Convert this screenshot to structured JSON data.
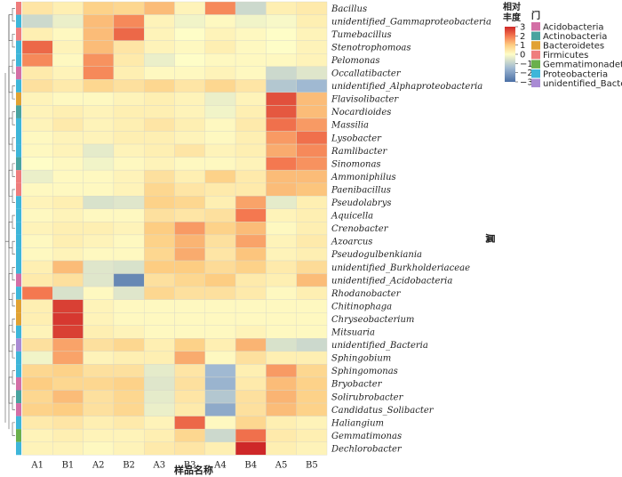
{
  "chart_data": {
    "type": "heatmap",
    "columns": [
      "A1",
      "B1",
      "A2",
      "B2",
      "A3",
      "B3",
      "A4",
      "B4",
      "A5",
      "B5"
    ],
    "rows": [
      "Bacillus",
      "unidentified_Gammaproteobacteria",
      "Tumebacillus",
      "Stenotrophomoas",
      "Pelomonas",
      "Occallatibacter",
      "unidentified_Alphaproteobacteria",
      "Flavisolibacter",
      "Nocardioides",
      "Massilia",
      "Lysobacter",
      "Ramlibacter",
      "Sinomonas",
      "Ammoniphilus",
      "Paenibacillus",
      "Pseudolabrys",
      "Aquicella",
      "Crenobacter",
      "Azoarcus",
      "Pseudogulbenkiania",
      "unidentified_Burkholderiaceae",
      "unidentified_Acidobacteria",
      "Rhodanobacter",
      "Chitinophaga",
      "Chryseobacterium",
      "Mitsuaria",
      "unidentified_Bacteria",
      "Sphingobium",
      "Sphingomonas",
      "Bryobacter",
      "Solirubrobacter",
      "Candidatus_Solibacter",
      "Haliangium",
      "Gemmatimonas",
      "Dechlorobacter"
    ],
    "row_phylum": [
      "Firmicutes",
      "Proteobacteria",
      "Firmicutes",
      "Proteobacteria",
      "Proteobacteria",
      "Acidobacteria",
      "Proteobacteria",
      "Bacteroidetes",
      "Actinobacteria",
      "Proteobacteria",
      "Proteobacteria",
      "Proteobacteria",
      "Actinobacteria",
      "Firmicutes",
      "Firmicutes",
      "Proteobacteria",
      "Proteobacteria",
      "Proteobacteria",
      "Proteobacteria",
      "Proteobacteria",
      "Proteobacteria",
      "Acidobacteria",
      "Proteobacteria",
      "Bacteroidetes",
      "Bacteroidetes",
      "Proteobacteria",
      "unidentified_Bacteria",
      "Proteobacteria",
      "Proteobacteria",
      "Acidobacteria",
      "Actinobacteria",
      "Acidobacteria",
      "Proteobacteria",
      "Gemmatimonadetes",
      "Proteobacteria"
    ],
    "values": [
      [
        0.5,
        0.3,
        0.9,
        0.8,
        1.2,
        0.2,
        1.8,
        -0.8,
        0.3,
        0.4
      ],
      [
        -0.8,
        -0.3,
        1.2,
        1.8,
        0.2,
        -0.2,
        0.1,
        -0.2,
        -0.1,
        0.3
      ],
      [
        0.3,
        0.1,
        1.2,
        2.2,
        0.2,
        0.0,
        0.2,
        0.1,
        0.0,
        0.2
      ],
      [
        2.2,
        0.2,
        1.2,
        0.5,
        0.2,
        0.1,
        0.3,
        0.1,
        0.0,
        0.2
      ],
      [
        1.8,
        0.1,
        1.7,
        0.4,
        -0.3,
        0.0,
        0.1,
        0.1,
        0.1,
        0.2
      ],
      [
        0.4,
        0.2,
        1.8,
        0.3,
        0.1,
        0.1,
        0.2,
        0.1,
        -0.8,
        -0.5
      ],
      [
        0.6,
        0.4,
        0.8,
        0.6,
        0.8,
        0.5,
        0.8,
        0.5,
        -1.2,
        -1.5
      ],
      [
        0.2,
        0.1,
        0.1,
        0.2,
        0.3,
        0.2,
        -0.3,
        0.2,
        2.5,
        1.2
      ],
      [
        0.2,
        0.3,
        0.2,
        0.3,
        0.3,
        0.2,
        -0.2,
        0.3,
        2.4,
        1.2
      ],
      [
        0.2,
        0.4,
        0.2,
        0.3,
        0.5,
        0.3,
        0.1,
        0.4,
        2.1,
        1.6
      ],
      [
        0.1,
        0.2,
        0.2,
        0.3,
        0.3,
        0.2,
        0.1,
        0.3,
        1.6,
        2.1
      ],
      [
        0.1,
        0.2,
        -0.4,
        0.2,
        0.3,
        0.5,
        0.2,
        0.3,
        1.4,
        1.8
      ],
      [
        0.0,
        0.1,
        -0.2,
        0.1,
        0.2,
        0.1,
        0.1,
        0.2,
        2.0,
        1.7
      ],
      [
        -0.3,
        0.1,
        0.1,
        0.2,
        0.6,
        0.3,
        0.9,
        0.4,
        1.2,
        1.2
      ],
      [
        0.1,
        0.1,
        0.1,
        0.2,
        0.8,
        0.5,
        0.4,
        0.4,
        1.2,
        1.1
      ],
      [
        0.2,
        0.3,
        -0.6,
        -0.5,
        0.9,
        0.8,
        0.3,
        1.5,
        -0.4,
        0.3
      ],
      [
        0.1,
        0.2,
        0.1,
        0.1,
        0.6,
        0.5,
        0.6,
        2.0,
        0.2,
        0.3
      ],
      [
        0.2,
        0.3,
        0.3,
        0.2,
        1.0,
        1.6,
        0.9,
        1.2,
        0.1,
        0.3
      ],
      [
        0.1,
        0.3,
        0.2,
        0.1,
        0.9,
        1.3,
        0.6,
        1.5,
        0.2,
        0.4
      ],
      [
        0.1,
        0.2,
        0.1,
        0.1,
        0.8,
        1.4,
        0.5,
        1.1,
        0.2,
        0.3
      ],
      [
        0.3,
        1.2,
        -0.5,
        -0.6,
        1.0,
        1.0,
        0.7,
        0.9,
        0.4,
        0.7
      ],
      [
        0.4,
        0.6,
        -0.5,
        -2.5,
        0.6,
        0.8,
        1.0,
        0.4,
        0.3,
        1.2
      ],
      [
        2.0,
        -0.6,
        0.1,
        -0.5,
        0.8,
        0.6,
        0.6,
        0.4,
        0.1,
        0.3
      ],
      [
        0.3,
        2.7,
        0.2,
        0.1,
        0.1,
        0.1,
        0.1,
        0.1,
        0.1,
        0.1
      ],
      [
        0.3,
        2.8,
        0.2,
        0.1,
        0.1,
        0.1,
        0.1,
        0.1,
        0.1,
        0.1
      ],
      [
        0.2,
        2.7,
        0.3,
        0.2,
        0.1,
        0.1,
        0.1,
        0.2,
        0.1,
        0.1
      ],
      [
        0.6,
        1.5,
        0.6,
        0.8,
        0.3,
        0.9,
        0.3,
        1.3,
        -0.6,
        -0.8
      ],
      [
        -0.2,
        1.5,
        0.2,
        0.3,
        0.3,
        1.4,
        0.1,
        0.6,
        0.3,
        0.3
      ],
      [
        0.8,
        0.9,
        0.6,
        0.6,
        -0.4,
        0.5,
        -1.5,
        0.3,
        1.6,
        0.8
      ],
      [
        1.0,
        0.8,
        0.8,
        0.9,
        -0.5,
        0.6,
        -1.6,
        0.4,
        1.2,
        0.9
      ],
      [
        0.8,
        1.2,
        0.6,
        0.8,
        -0.4,
        0.5,
        -1.2,
        0.6,
        1.3,
        0.9
      ],
      [
        0.9,
        1.0,
        0.6,
        0.8,
        -0.3,
        0.4,
        -1.8,
        0.6,
        1.2,
        0.9
      ],
      [
        0.4,
        0.5,
        0.3,
        0.4,
        0.2,
        2.2,
        0.1,
        0.8,
        0.3,
        0.2
      ],
      [
        0.2,
        0.3,
        0.2,
        0.2,
        0.3,
        0.8,
        -0.8,
        2.1,
        0.4,
        0.3
      ],
      [
        0.2,
        0.2,
        0.1,
        0.2,
        0.4,
        0.5,
        0.3,
        3.0,
        0.3,
        0.2
      ]
    ],
    "xlabel": "样品名称",
    "ylabel": "属",
    "color_legend": {
      "title_line1": "相对",
      "title_line2": "丰度",
      "ticks": [
        3,
        2,
        1,
        0,
        -1,
        -2,
        -3
      ],
      "tick_labels": [
        "3",
        "2",
        "1",
        "0",
        "−1",
        "−2",
        "−3"
      ],
      "range": [
        -3,
        3
      ],
      "colors": [
        "#4a6fa5",
        "#fefdc7",
        "#d73027"
      ]
    },
    "phylum_legend": {
      "title": "门",
      "entries": [
        {
          "label": "Acidobacteria",
          "color": "#d36fa6"
        },
        {
          "label": "Actinobacteria",
          "color": "#49a39f"
        },
        {
          "label": "Bacteroidetes",
          "color": "#e1a233"
        },
        {
          "label": "Firmicutes",
          "color": "#ef7d7d"
        },
        {
          "label": "Gemmatimonadetes",
          "color": "#6ab04c"
        },
        {
          "label": "Proteobacteria",
          "color": "#3eb6d9"
        },
        {
          "label": "unidentified_Bacteria",
          "color": "#a98bd4"
        }
      ]
    },
    "grid": true,
    "legend_position": "right"
  }
}
